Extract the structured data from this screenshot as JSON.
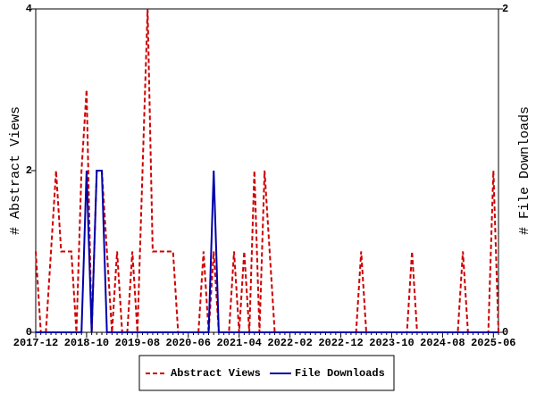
{
  "chart_data": {
    "type": "line",
    "categories": [
      "2017-12",
      null,
      null,
      null,
      null,
      null,
      null,
      null,
      null,
      null,
      "2018-10",
      null,
      null,
      null,
      null,
      null,
      null,
      null,
      null,
      null,
      "2019-08",
      null,
      null,
      null,
      null,
      null,
      null,
      null,
      null,
      null,
      "2020-06",
      null,
      null,
      null,
      null,
      null,
      null,
      null,
      null,
      null,
      "2021-04",
      null,
      null,
      null,
      null,
      null,
      null,
      null,
      null,
      null,
      "2022-02",
      null,
      null,
      null,
      null,
      null,
      null,
      null,
      null,
      null,
      "2022-12",
      null,
      null,
      null,
      null,
      null,
      null,
      null,
      null,
      null,
      "2023-10",
      null,
      null,
      null,
      null,
      null,
      null,
      null,
      null,
      null,
      "2024-08",
      null,
      null,
      null,
      null,
      null,
      null,
      null,
      null,
      null,
      "2025-06",
      null
    ],
    "y_label": "# Abstract Views",
    "y2_label": "# File Downloads",
    "ylim": [
      0,
      4
    ],
    "yticks": [
      0,
      2,
      4
    ],
    "y2lim": [
      0,
      2
    ],
    "y2ticks": [
      0,
      2
    ],
    "legend": "bottom",
    "series": [
      {
        "name": "Abstract Views",
        "color": "#cc0000",
        "dash": true,
        "values": [
          1,
          0,
          0,
          1,
          2,
          1,
          1,
          1,
          0,
          2,
          3,
          0,
          2,
          2,
          1,
          0,
          1,
          0,
          0,
          1,
          0,
          2,
          4,
          1,
          1,
          1,
          1,
          1,
          0,
          0,
          0,
          0,
          0,
          1,
          0,
          1,
          0,
          0,
          0,
          1,
          0,
          1,
          0,
          2,
          0,
          2,
          1,
          0,
          0,
          0,
          0,
          0,
          0,
          0,
          0,
          0,
          0,
          0,
          0,
          0,
          0,
          0,
          0,
          0,
          1,
          0,
          0,
          0,
          0,
          0,
          0,
          0,
          0,
          0,
          1,
          0,
          0,
          0,
          0,
          0,
          0,
          0,
          0,
          0,
          1,
          0,
          0,
          0,
          0,
          0,
          2,
          0
        ]
      },
      {
        "name": "File Downloads",
        "color": "#0000aa",
        "dash": false,
        "axis": "y2",
        "values": [
          0,
          0,
          0,
          0,
          0,
          0,
          0,
          0,
          0,
          0,
          1,
          0,
          1,
          1,
          0,
          0,
          0,
          0,
          0,
          0,
          0,
          0,
          0,
          0,
          0,
          0,
          0,
          0,
          0,
          0,
          0,
          0,
          0,
          0,
          0,
          1,
          0,
          0,
          0,
          0,
          0,
          0,
          0,
          0,
          0,
          0,
          0,
          0,
          0,
          0,
          0,
          0,
          0,
          0,
          0,
          0,
          0,
          0,
          0,
          0,
          0,
          0,
          0,
          0,
          0,
          0,
          0,
          0,
          0,
          0,
          0,
          0,
          0,
          0,
          0,
          0,
          0,
          0,
          0,
          0,
          0,
          0,
          0,
          0,
          0,
          0,
          0,
          0,
          0,
          0,
          0,
          0
        ]
      }
    ]
  }
}
